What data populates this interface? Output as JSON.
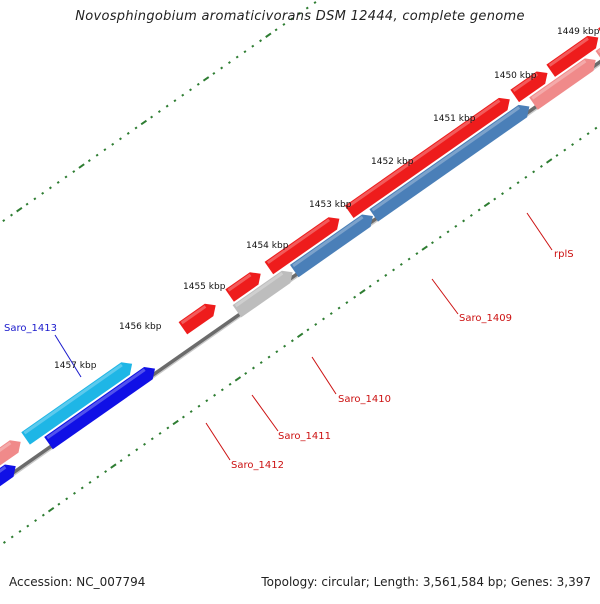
{
  "title": "Novosphingobium aromaticivorans DSM 12444, complete genome",
  "footer": {
    "accession": "Accession: NC_007794",
    "stats": "Topology: circular; Length: 3,561,584 bp; Genes: 3,397"
  },
  "colors": {
    "background": "#ffffff",
    "backbone": "#6b6b6b",
    "ticks": "#2e7d32",
    "gene_red": "#ee1c1c",
    "gene_pink": "#f08a8a",
    "gene_blue": "#1010e6",
    "gene_cyan": "#1eb6e6",
    "gene_steel": "#4a7fb8",
    "gene_grey": "#bdbdbd",
    "label_red": "#cc1111",
    "label_blue": "#1a1acc"
  },
  "scale": {
    "unit": "kbp",
    "labels": [
      "1449 kbp",
      "1450 kbp",
      "1451 kbp",
      "1452 kbp",
      "1453 kbp",
      "1454 kbp",
      "1455 kbp",
      "1456 kbp",
      "1457 kbp"
    ]
  },
  "gene_labels": [
    {
      "id": "rplS",
      "text": "rplS",
      "color": "red"
    },
    {
      "id": "saro-1409",
      "text": "Saro_1409",
      "color": "red"
    },
    {
      "id": "saro-1410",
      "text": "Saro_1410",
      "color": "red"
    },
    {
      "id": "saro-1411",
      "text": "Saro_1411",
      "color": "red"
    },
    {
      "id": "saro-1412",
      "text": "Saro_1412",
      "color": "red"
    },
    {
      "id": "saro-1413",
      "text": "Saro_1413",
      "color": "blue"
    }
  ]
}
